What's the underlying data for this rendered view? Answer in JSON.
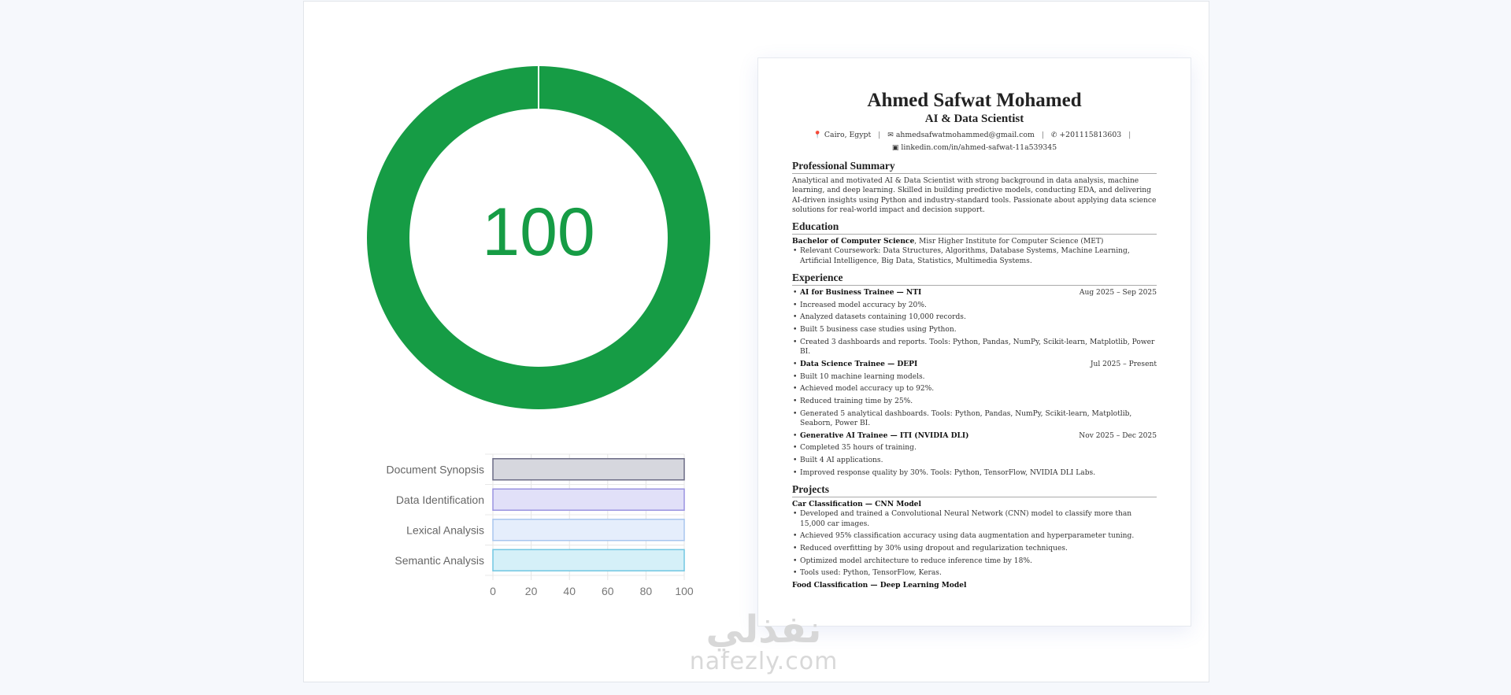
{
  "score": {
    "value": "100",
    "fraction": 1.0,
    "color": "#169c45"
  },
  "chart_data": {
    "type": "bar",
    "orientation": "horizontal",
    "categories": [
      "Document Synopsis",
      "Data Identification",
      "Lexical Analysis",
      "Semantic Analysis"
    ],
    "values": [
      100,
      100,
      100,
      100
    ],
    "xlim": [
      0,
      100
    ],
    "xticks": [
      "0",
      "20",
      "40",
      "60",
      "80",
      "100"
    ],
    "grid": true,
    "colors": [
      {
        "fill": "#d6d7de",
        "stroke": "#6b6b85"
      },
      {
        "fill": "#e1e0f8",
        "stroke": "#9a93e0"
      },
      {
        "fill": "#e5eefc",
        "stroke": "#a9c6ee"
      },
      {
        "fill": "#d5f0f8",
        "stroke": "#72c7e2"
      }
    ]
  },
  "resume": {
    "name": "Ahmed Safwat Mohamed",
    "title": "AI & Data Scientist",
    "contact": {
      "location": "Cairo, Egypt",
      "email": "ahmedsafwatmohammed@gmail.com",
      "phone": "+201115813603",
      "linkedin": "linkedin.com/in/ahmed-safwat-11a539345",
      "separator": "|"
    },
    "summary": {
      "heading": "Professional Summary",
      "text": "Analytical and motivated AI & Data Scientist with strong background in data analysis, machine learning, and deep learning. Skilled in building predictive models, conducting EDA, and delivering AI-driven insights using Python and industry-standard tools. Passionate about applying data science solutions for real-world impact and decision support."
    },
    "education": {
      "heading": "Education",
      "degree": "Bachelor of Computer Science",
      "school": ", Misr Higher Institute for Computer Science (MET)",
      "coursework": "Relevant Coursework: Data Structures, Algorithms, Database Systems, Machine Learning, Artificial Intelligence, Big Data, Statistics, Multimedia Systems."
    },
    "experience": {
      "heading": "Experience",
      "jobs": [
        {
          "role": "AI for Business Trainee — NTI",
          "dates": "Aug 2025 – Sep 2025",
          "bullets": [
            "Increased model accuracy by 20%.",
            "Analyzed datasets containing 10,000 records.",
            "Built 5 business case studies using Python.",
            "Created 3 dashboards and reports. Tools: Python, Pandas, NumPy, Scikit-learn, Matplotlib, Power BI."
          ]
        },
        {
          "role": "Data Science Trainee — DEPI",
          "dates": "Jul 2025 – Present",
          "bullets": [
            "Built 10 machine learning models.",
            "Achieved model accuracy up to 92%.",
            "Reduced training time by 25%.",
            "Generated 5 analytical dashboards. Tools: Python, Pandas, NumPy, Scikit-learn, Matplotlib, Seaborn, Power BI."
          ]
        },
        {
          "role": "Generative AI Trainee — ITI (NVIDIA DLI)",
          "dates": "Nov 2025 – Dec 2025",
          "bullets": [
            "Completed 35 hours of training.",
            "Built 4 AI applications.",
            "Improved response quality by 30%. Tools: Python, TensorFlow, NVIDIA DLI Labs."
          ]
        }
      ]
    },
    "projects": {
      "heading": "Projects",
      "items": [
        {
          "title": "Car Classification — CNN Model",
          "bullets": [
            "Developed and trained a Convolutional Neural Network (CNN) model to classify more than 15,000 car images.",
            "Achieved 95% classification accuracy using data augmentation and hyperparameter tuning.",
            "Reduced overfitting by 30% using dropout and regularization techniques.",
            "Optimized model architecture to reduce inference time by 18%.",
            "Tools used: Python, TensorFlow, Keras."
          ]
        },
        {
          "title": "Food Classification — Deep Learning Model",
          "bullets": []
        }
      ]
    }
  },
  "watermark": {
    "arabic": "نفذلي",
    "latin": "nafezly.com"
  }
}
